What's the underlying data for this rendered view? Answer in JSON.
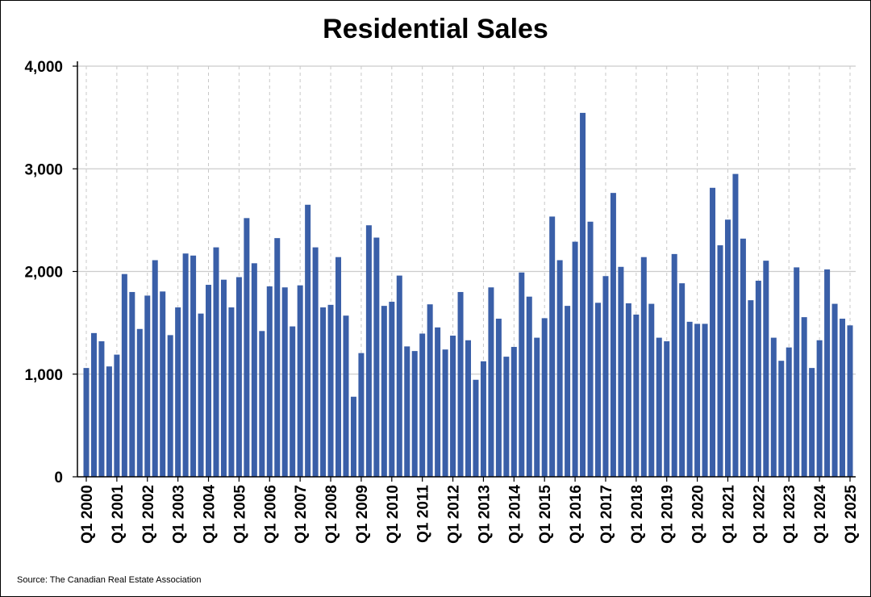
{
  "chart_data": {
    "type": "bar",
    "title": "Residential Sales",
    "xlabel": "",
    "ylabel": "",
    "ylim": [
      0,
      4000
    ],
    "yticks": [
      0,
      1000,
      2000,
      3000,
      4000
    ],
    "ytick_labels": [
      "0",
      "1,000",
      "2,000",
      "3,000",
      "4,000"
    ],
    "gridlines": {
      "horizontal": true,
      "vertical_dashed": true
    },
    "bar_color": "#3A5FA8",
    "start": "Q1 2000",
    "x_tick_labels": [
      "Q1 2000",
      "Q1 2001",
      "Q1 2002",
      "Q1 2003",
      "Q1 2004",
      "Q1 2005",
      "Q1 2006",
      "Q1 2007",
      "Q1 2008",
      "Q1 2009",
      "Q1 2010",
      "Q1 2011",
      "Q1 2012",
      "Q1 2013",
      "Q1 2014",
      "Q1 2015",
      "Q1 2016",
      "Q1 2017",
      "Q1 2018",
      "Q1 2019",
      "Q1 2020",
      "Q1 2021",
      "Q1 2022",
      "Q1 2023",
      "Q1 2024",
      "Q1 2025"
    ],
    "values": [
      1060,
      1400,
      1320,
      1075,
      1190,
      1975,
      1800,
      1440,
      1765,
      2110,
      1805,
      1380,
      1650,
      2175,
      2155,
      1590,
      1870,
      2235,
      1920,
      1650,
      1945,
      2520,
      2080,
      1420,
      1855,
      2325,
      1845,
      1465,
      1865,
      2650,
      2235,
      1650,
      1675,
      2140,
      1570,
      780,
      1205,
      2450,
      2330,
      1665,
      1705,
      1960,
      1270,
      1225,
      1395,
      1680,
      1455,
      1240,
      1375,
      1800,
      1330,
      945,
      1125,
      1845,
      1540,
      1170,
      1265,
      1990,
      1755,
      1355,
      1545,
      2535,
      2110,
      1665,
      2290,
      3545,
      2485,
      1695,
      1955,
      2765,
      2045,
      1690,
      1580,
      2140,
      1685,
      1355,
      1320,
      2170,
      1885,
      1510,
      1490,
      1490,
      2815,
      2255,
      2505,
      2950,
      2320,
      1720,
      1910,
      2105,
      1355,
      1130,
      1260,
      2040,
      1555,
      1060,
      1330,
      2020,
      1685,
      1540,
      1475
    ]
  },
  "footer": {
    "source": "Source: The Canadian Real Estate Association"
  }
}
